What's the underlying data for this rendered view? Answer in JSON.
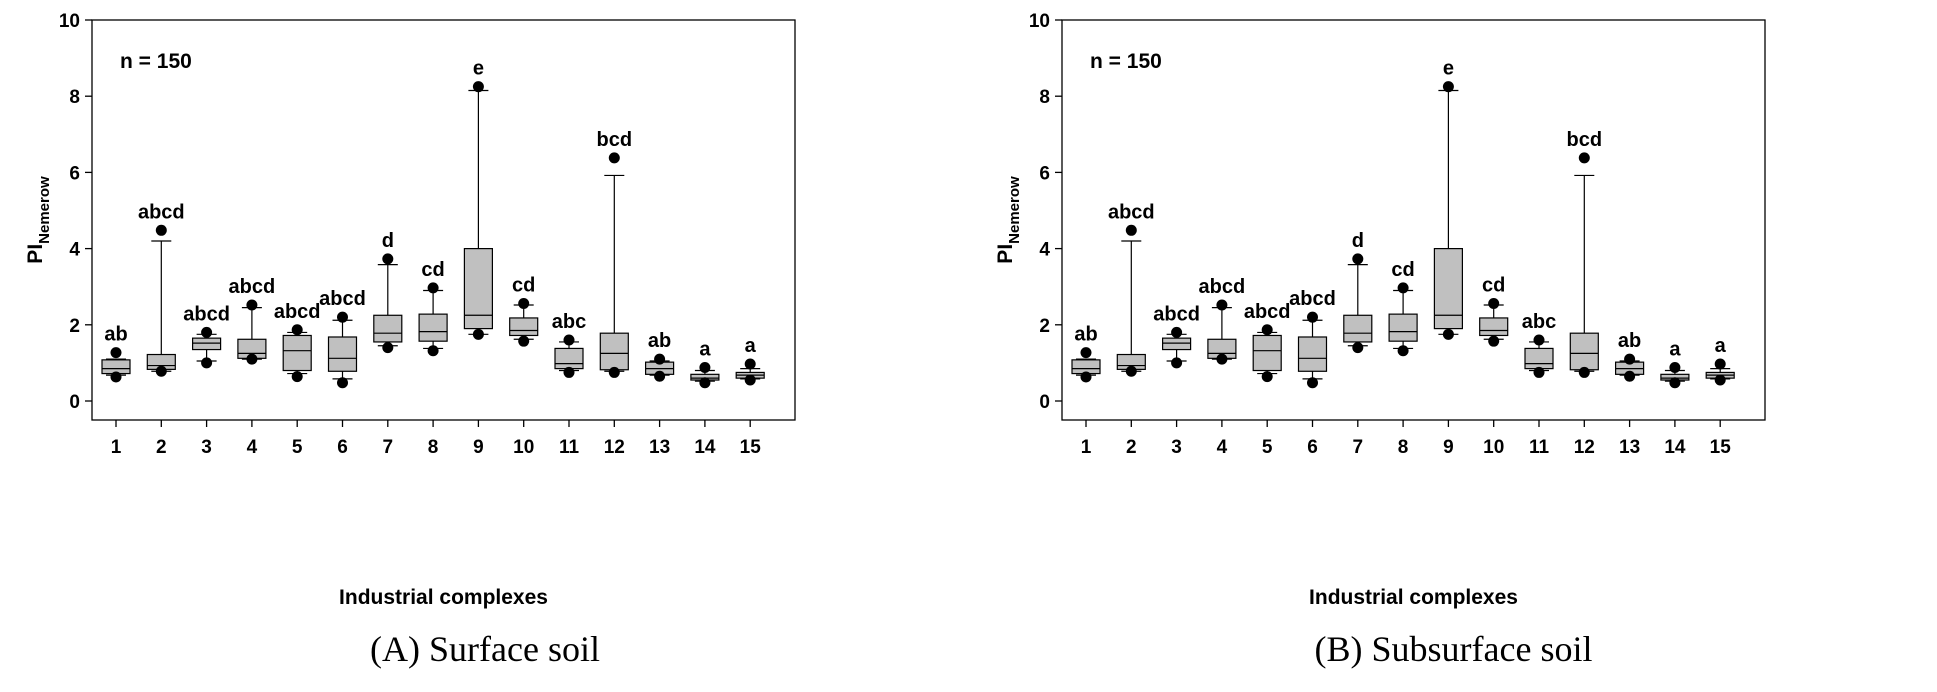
{
  "chart_data": [
    {
      "type": "box",
      "caption": "(A) Surface soil",
      "annotation": "n = 150",
      "xlabel": "Industrial complexes",
      "ylabel_main": "PI",
      "ylabel_sub": "Nemerow",
      "ylim": [
        0,
        10
      ],
      "yticks": [
        "0",
        "2",
        "4",
        "6",
        "8",
        "10"
      ],
      "categories": [
        "1",
        "2",
        "3",
        "4",
        "5",
        "6",
        "7",
        "8",
        "9",
        "10",
        "11",
        "12",
        "13",
        "14",
        "15"
      ],
      "boxes": [
        {
          "whisker_low": 0.68,
          "q1": 0.72,
          "median": 0.85,
          "q3": 1.08,
          "whisker_high": 1.1,
          "outliers": [
            0.63,
            1.27
          ],
          "letter": "ab"
        },
        {
          "whisker_low": 0.78,
          "q1": 0.83,
          "median": 0.93,
          "q3": 1.22,
          "whisker_high": 4.2,
          "outliers": [
            0.78,
            4.48
          ],
          "letter": "abcd"
        },
        {
          "whisker_low": 1.05,
          "q1": 1.35,
          "median": 1.52,
          "q3": 1.65,
          "whisker_high": 1.75,
          "outliers": [
            1.0,
            1.8
          ],
          "letter": "abcd"
        },
        {
          "whisker_low": 1.1,
          "q1": 1.12,
          "median": 1.25,
          "q3": 1.62,
          "whisker_high": 2.45,
          "outliers": [
            1.1,
            2.52
          ],
          "letter": "abcd"
        },
        {
          "whisker_low": 0.72,
          "q1": 0.8,
          "median": 1.32,
          "q3": 1.72,
          "whisker_high": 1.8,
          "outliers": [
            0.64,
            1.87
          ],
          "letter": "abcd"
        },
        {
          "whisker_low": 0.58,
          "q1": 0.78,
          "median": 1.12,
          "q3": 1.68,
          "whisker_high": 2.12,
          "outliers": [
            0.48,
            2.2
          ],
          "letter": "abcd"
        },
        {
          "whisker_low": 1.45,
          "q1": 1.55,
          "median": 1.78,
          "q3": 2.25,
          "whisker_high": 3.58,
          "outliers": [
            1.4,
            3.73
          ],
          "letter": "d"
        },
        {
          "whisker_low": 1.38,
          "q1": 1.57,
          "median": 1.82,
          "q3": 2.28,
          "whisker_high": 2.9,
          "outliers": [
            1.32,
            2.97
          ],
          "letter": "cd"
        },
        {
          "whisker_low": 1.75,
          "q1": 1.9,
          "median": 2.25,
          "q3": 4.0,
          "whisker_high": 8.15,
          "outliers": [
            1.75,
            8.25
          ],
          "letter": "e"
        },
        {
          "whisker_low": 1.62,
          "q1": 1.72,
          "median": 1.85,
          "q3": 2.18,
          "whisker_high": 2.52,
          "outliers": [
            1.57,
            2.56
          ],
          "letter": "cd"
        },
        {
          "whisker_low": 0.8,
          "q1": 0.85,
          "median": 0.98,
          "q3": 1.38,
          "whisker_high": 1.55,
          "outliers": [
            0.75,
            1.6
          ],
          "letter": "abc"
        },
        {
          "whisker_low": 0.78,
          "q1": 0.82,
          "median": 1.25,
          "q3": 1.78,
          "whisker_high": 5.92,
          "outliers": [
            0.75,
            6.38
          ],
          "letter": "bcd"
        },
        {
          "whisker_low": 0.68,
          "q1": 0.7,
          "median": 0.85,
          "q3": 1.02,
          "whisker_high": 1.05,
          "outliers": [
            0.65,
            1.1
          ],
          "letter": "ab"
        },
        {
          "whisker_low": 0.52,
          "q1": 0.55,
          "median": 0.6,
          "q3": 0.7,
          "whisker_high": 0.8,
          "outliers": [
            0.48,
            0.88
          ],
          "letter": "a"
        },
        {
          "whisker_low": 0.58,
          "q1": 0.6,
          "median": 0.68,
          "q3": 0.75,
          "whisker_high": 0.85,
          "outliers": [
            0.55,
            0.97
          ],
          "letter": "a"
        }
      ]
    },
    {
      "type": "box",
      "caption": "(B) Subsurface soil",
      "annotation": "n = 150",
      "xlabel": "Industrial complexes",
      "ylabel_main": "PI",
      "ylabel_sub": "Nemerow",
      "ylim": [
        0,
        10
      ],
      "yticks": [
        "0",
        "2",
        "4",
        "6",
        "8",
        "10"
      ],
      "categories": [
        "1",
        "2",
        "3",
        "4",
        "5",
        "6",
        "7",
        "8",
        "9",
        "10",
        "11",
        "12",
        "13",
        "14",
        "15"
      ],
      "boxes": [
        {
          "whisker_low": 0.68,
          "q1": 0.72,
          "median": 0.85,
          "q3": 1.08,
          "whisker_high": 1.1,
          "outliers": [
            0.63,
            1.27
          ],
          "letter": "ab"
        },
        {
          "whisker_low": 0.78,
          "q1": 0.83,
          "median": 0.93,
          "q3": 1.22,
          "whisker_high": 4.2,
          "outliers": [
            0.78,
            4.48
          ],
          "letter": "abcd"
        },
        {
          "whisker_low": 1.05,
          "q1": 1.35,
          "median": 1.52,
          "q3": 1.65,
          "whisker_high": 1.75,
          "outliers": [
            1.0,
            1.8
          ],
          "letter": "abcd"
        },
        {
          "whisker_low": 1.1,
          "q1": 1.12,
          "median": 1.25,
          "q3": 1.62,
          "whisker_high": 2.45,
          "outliers": [
            1.1,
            2.52
          ],
          "letter": "abcd"
        },
        {
          "whisker_low": 0.72,
          "q1": 0.8,
          "median": 1.32,
          "q3": 1.72,
          "whisker_high": 1.8,
          "outliers": [
            0.64,
            1.87
          ],
          "letter": "abcd"
        },
        {
          "whisker_low": 0.58,
          "q1": 0.78,
          "median": 1.12,
          "q3": 1.68,
          "whisker_high": 2.12,
          "outliers": [
            0.48,
            2.2
          ],
          "letter": "abcd"
        },
        {
          "whisker_low": 1.45,
          "q1": 1.55,
          "median": 1.78,
          "q3": 2.25,
          "whisker_high": 3.58,
          "outliers": [
            1.4,
            3.73
          ],
          "letter": "d"
        },
        {
          "whisker_low": 1.38,
          "q1": 1.57,
          "median": 1.82,
          "q3": 2.28,
          "whisker_high": 2.9,
          "outliers": [
            1.32,
            2.97
          ],
          "letter": "cd"
        },
        {
          "whisker_low": 1.75,
          "q1": 1.9,
          "median": 2.25,
          "q3": 4.0,
          "whisker_high": 8.15,
          "outliers": [
            1.75,
            8.25
          ],
          "letter": "e"
        },
        {
          "whisker_low": 1.62,
          "q1": 1.72,
          "median": 1.85,
          "q3": 2.18,
          "whisker_high": 2.52,
          "outliers": [
            1.57,
            2.56
          ],
          "letter": "cd"
        },
        {
          "whisker_low": 0.8,
          "q1": 0.85,
          "median": 0.98,
          "q3": 1.38,
          "whisker_high": 1.55,
          "outliers": [
            0.75,
            1.6
          ],
          "letter": "abc"
        },
        {
          "whisker_low": 0.78,
          "q1": 0.82,
          "median": 1.25,
          "q3": 1.78,
          "whisker_high": 5.92,
          "outliers": [
            0.75,
            6.38
          ],
          "letter": "bcd"
        },
        {
          "whisker_low": 0.68,
          "q1": 0.7,
          "median": 0.85,
          "q3": 1.02,
          "whisker_high": 1.05,
          "outliers": [
            0.65,
            1.1
          ],
          "letter": "ab"
        },
        {
          "whisker_low": 0.52,
          "q1": 0.55,
          "median": 0.6,
          "q3": 0.7,
          "whisker_high": 0.8,
          "outliers": [
            0.48,
            0.88
          ],
          "letter": "a"
        },
        {
          "whisker_low": 0.58,
          "q1": 0.6,
          "median": 0.68,
          "q3": 0.75,
          "whisker_high": 0.85,
          "outliers": [
            0.55,
            0.97
          ],
          "letter": "a"
        }
      ]
    }
  ],
  "colors": {
    "box_fill": "#c0c0c0",
    "line": "#000000",
    "background": "#ffffff"
  }
}
